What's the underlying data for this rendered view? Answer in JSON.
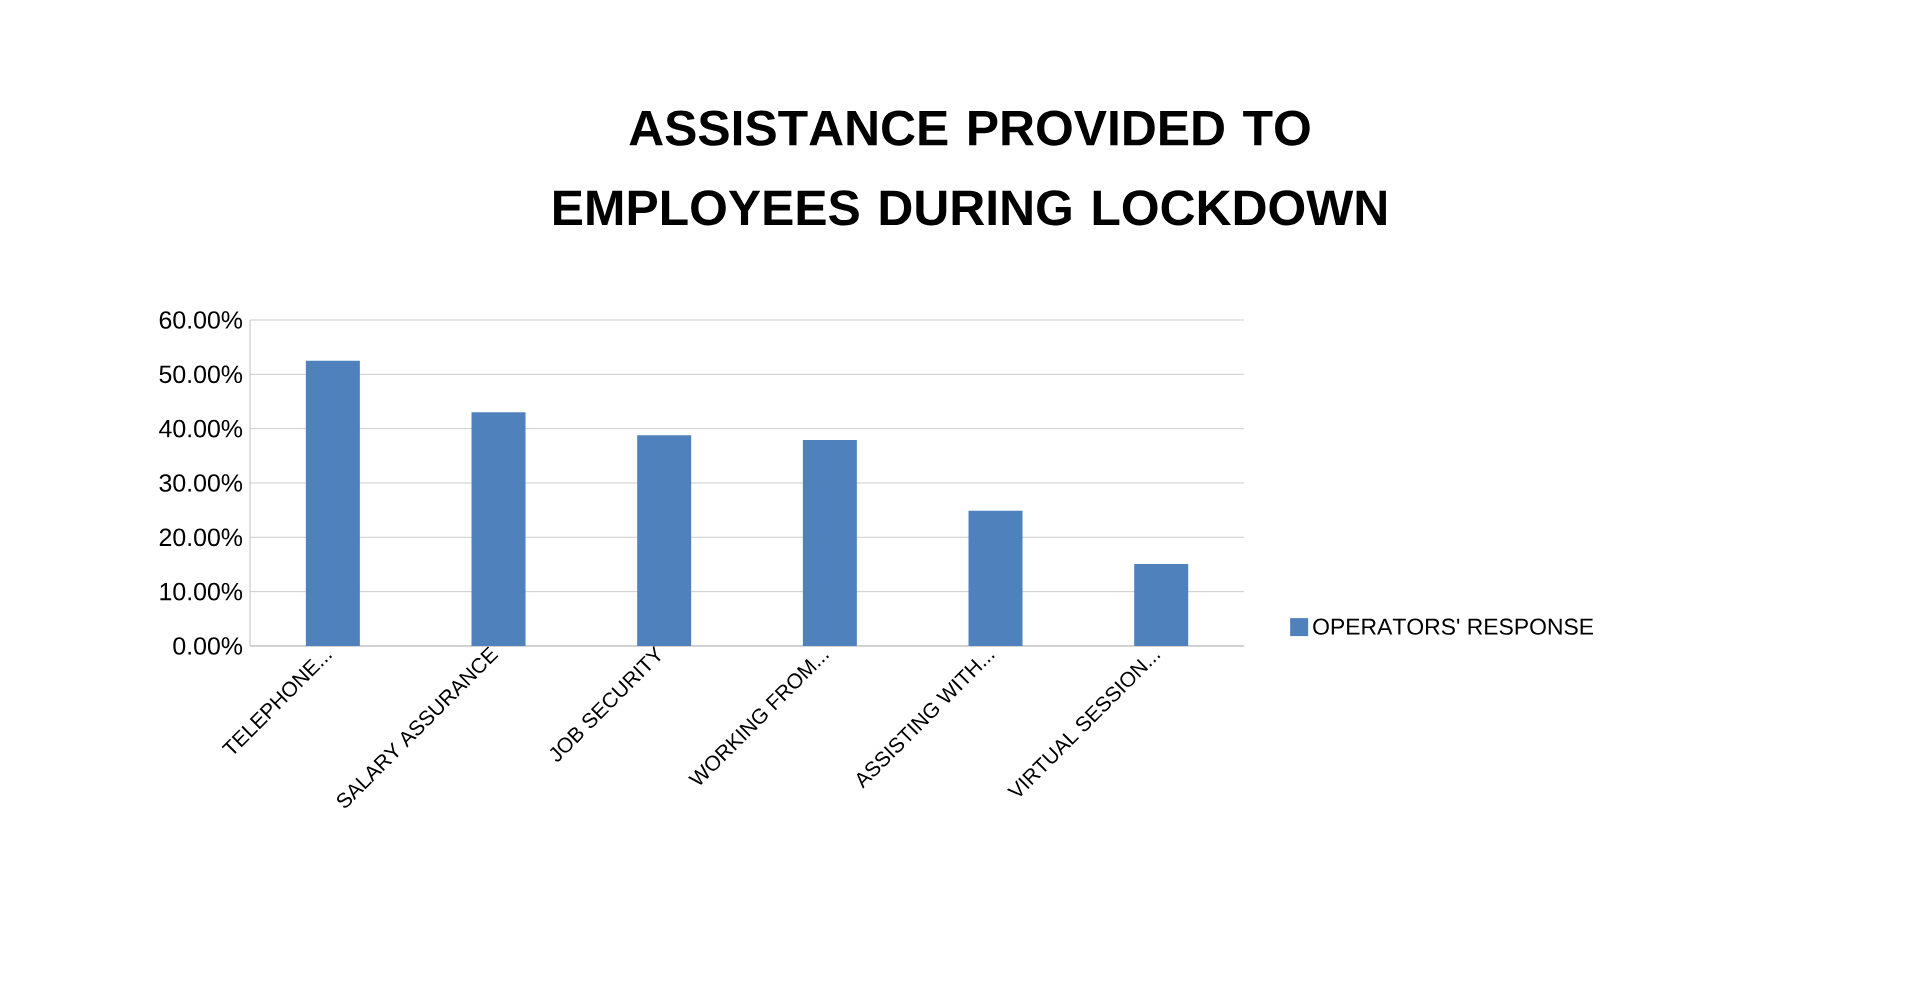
{
  "chart_data": {
    "type": "bar",
    "title": "ASSISTANCE PROVIDED TO EMPLOYEES DURING LOCKDOWN",
    "categories": [
      "TELEPHONE...",
      "SALARY ASSURANCE",
      "JOB SECURITY",
      "WORKING FROM...",
      "ASSISTING WITH...",
      "VIRTUAL SESSION..."
    ],
    "series": [
      {
        "name": "OPERATORS' RESPONSE",
        "color": "#4f81bd",
        "values": [
          52.5,
          43.0,
          38.8,
          37.9,
          24.9,
          15.1
        ]
      }
    ],
    "ylim": [
      0,
      60
    ],
    "yticks": [
      {
        "value": 0,
        "label": "0.00%"
      },
      {
        "value": 10,
        "label": "10.00%"
      },
      {
        "value": 20,
        "label": "20.00%"
      },
      {
        "value": 30,
        "label": "30.00%"
      },
      {
        "value": 40,
        "label": "40.00%"
      },
      {
        "value": 50,
        "label": "50.00%"
      },
      {
        "value": 60,
        "label": "60.00%"
      }
    ],
    "grid": "y",
    "legend": "right"
  }
}
